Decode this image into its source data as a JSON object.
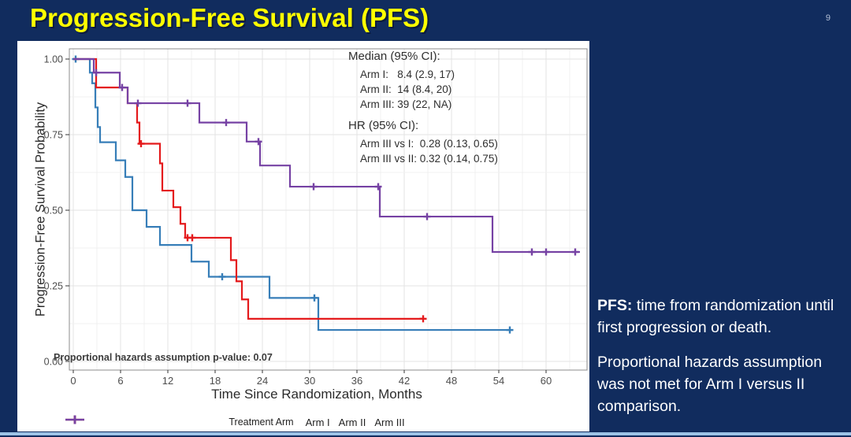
{
  "slide": {
    "title": "Progression-Free Survival (PFS)",
    "page_number": "9",
    "background_color": "#112C5E",
    "title_color": "#FFFF00",
    "bottom_strip_color": "#9DC3E6"
  },
  "side_text": {
    "p1_bold": "PFS:",
    "p1_rest": " time from randomization until first progression or death.",
    "p2": "Proportional hazards assumption was not met for Arm I versus II comparison."
  },
  "chart_data": {
    "type": "line",
    "subtype": "kaplan-meier-step",
    "title": "",
    "xlabel": "Time Since Randomization, Months",
    "ylabel": "Progression-Free Survival Probability",
    "xlim": [
      -2.5,
      65.2
    ],
    "ylim": [
      0,
      1
    ],
    "xticks": [
      0,
      6,
      12,
      18,
      24,
      30,
      36,
      42,
      48,
      54,
      60
    ],
    "ytick_labels": [
      "0.00",
      "0.25",
      "0.50",
      "0.75",
      "1.00"
    ],
    "ytick_values": [
      0,
      0.25,
      0.5,
      0.75,
      1.0
    ],
    "grid": "on",
    "legend_position": "bottom",
    "legend_title": "Treatment Arm",
    "annotations": {
      "median_header": "Median (95% CI):",
      "median_lines": [
        "Arm I:   8.4 (2.9, 17)",
        "Arm II:  14 (8.4, 20)",
        "Arm III: 39 (22, NA)"
      ],
      "hr_header": "HR (95% CI):",
      "hr_lines": [
        "Arm III vs I:  0.28 (0.13, 0.65)",
        "Arm III vs II: 0.32 (0.14, 0.75)"
      ],
      "ph_note": "Proportional hazards assumption p-value: 0.07"
    },
    "series": [
      {
        "name": "Arm I",
        "color": "#377EB8",
        "start": [
          0,
          1.0
        ],
        "steps": [
          [
            2.1,
            0.955
          ],
          [
            2.4,
            0.92
          ],
          [
            2.8,
            0.84
          ],
          [
            3.1,
            0.775
          ],
          [
            3.4,
            0.725
          ],
          [
            5.4,
            0.665
          ],
          [
            6.6,
            0.61
          ],
          [
            7.5,
            0.5
          ],
          [
            9.3,
            0.445
          ],
          [
            11.0,
            0.385
          ],
          [
            15.0,
            0.33
          ],
          [
            17.2,
            0.28
          ],
          [
            24.9,
            0.21
          ],
          [
            31.1,
            0.104
          ]
        ],
        "censors": [
          [
            0.3,
            1.0
          ],
          [
            18.9,
            0.28
          ],
          [
            30.6,
            0.21
          ],
          [
            55.4,
            0.104
          ]
        ],
        "end": 55.8
      },
      {
        "name": "Arm II",
        "color": "#E41A1C",
        "start": [
          0,
          1.0
        ],
        "steps": [
          [
            2.9,
            0.906
          ],
          [
            6.9,
            0.854
          ],
          [
            8.1,
            0.79
          ],
          [
            8.4,
            0.72
          ],
          [
            11.0,
            0.655
          ],
          [
            11.3,
            0.565
          ],
          [
            12.7,
            0.51
          ],
          [
            13.6,
            0.455
          ],
          [
            14.2,
            0.409
          ],
          [
            20.0,
            0.335
          ],
          [
            20.7,
            0.265
          ],
          [
            21.4,
            0.205
          ],
          [
            22.2,
            0.141
          ]
        ],
        "censors": [
          [
            8.6,
            0.72
          ],
          [
            14.5,
            0.409
          ],
          [
            15.1,
            0.409
          ],
          [
            44.4,
            0.141
          ]
        ],
        "end": 44.6
      },
      {
        "name": "Arm III",
        "color": "#7642A4",
        "start": [
          0,
          1.0
        ],
        "steps": [
          [
            2.6,
            0.955
          ],
          [
            5.9,
            0.906
          ],
          [
            6.9,
            0.854
          ],
          [
            16.0,
            0.79
          ],
          [
            22.0,
            0.727
          ],
          [
            23.7,
            0.648
          ],
          [
            27.5,
            0.578
          ],
          [
            38.9,
            0.479
          ],
          [
            53.2,
            0.362
          ]
        ],
        "censors": [
          [
            2.9,
            0.955
          ],
          [
            6.2,
            0.906
          ],
          [
            8.2,
            0.854
          ],
          [
            14.5,
            0.854
          ],
          [
            19.4,
            0.79
          ],
          [
            23.5,
            0.727
          ],
          [
            30.5,
            0.578
          ],
          [
            38.7,
            0.578
          ],
          [
            44.9,
            0.479
          ],
          [
            58.2,
            0.362
          ],
          [
            60.0,
            0.362
          ],
          [
            63.7,
            0.362
          ]
        ],
        "end": 64.3
      }
    ]
  }
}
